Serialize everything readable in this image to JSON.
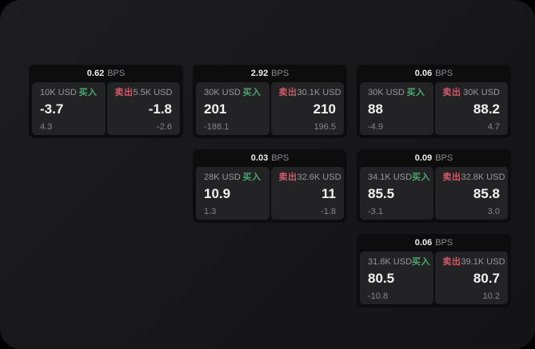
{
  "page": {
    "background": "#000000",
    "surface_color": "#18181a",
    "card_color": "#0d0d0e",
    "panel_color": "#232326",
    "accent_green": "#4ba86f",
    "accent_red": "#cf5a68",
    "bps_label": "BPS",
    "buy_label": "买入",
    "sell_label": "卖出"
  },
  "cards": [
    {
      "row": 1,
      "col": 1,
      "bps": "0.62",
      "buy": {
        "size": "10K USD",
        "value": "-3.7",
        "sub": "4.3"
      },
      "sell": {
        "size": "5.5K USD",
        "value": "-1.8",
        "sub": "-2.6"
      }
    },
    {
      "row": 1,
      "col": 2,
      "bps": "2.92",
      "buy": {
        "size": "30K USD",
        "value": "201",
        "sub": "-188.1"
      },
      "sell": {
        "size": "30.1K USD",
        "value": "210",
        "sub": "196.5"
      }
    },
    {
      "row": 1,
      "col": 3,
      "bps": "0.06",
      "buy": {
        "size": "30K USD",
        "value": "88",
        "sub": "-4.9"
      },
      "sell": {
        "size": "30K USD",
        "value": "88.2",
        "sub": "4.7"
      }
    },
    {
      "row": 2,
      "col": 2,
      "bps": "0.03",
      "buy": {
        "size": "28K USD",
        "value": "10.9",
        "sub": "1.3"
      },
      "sell": {
        "size": "32.6K USD",
        "value": "11",
        "sub": "-1.8"
      }
    },
    {
      "row": 2,
      "col": 3,
      "bps": "0.09",
      "buy": {
        "size": "34.1K USD",
        "value": "85.5",
        "sub": "-3.1"
      },
      "sell": {
        "size": "32.8K USD",
        "value": "85.8",
        "sub": "3.0"
      }
    },
    {
      "row": 3,
      "col": 3,
      "bps": "0.06",
      "buy": {
        "size": "31.8K USD",
        "value": "80.5",
        "sub": "-10.8"
      },
      "sell": {
        "size": "39.1K USD",
        "value": "80.7",
        "sub": "10.2"
      }
    }
  ]
}
